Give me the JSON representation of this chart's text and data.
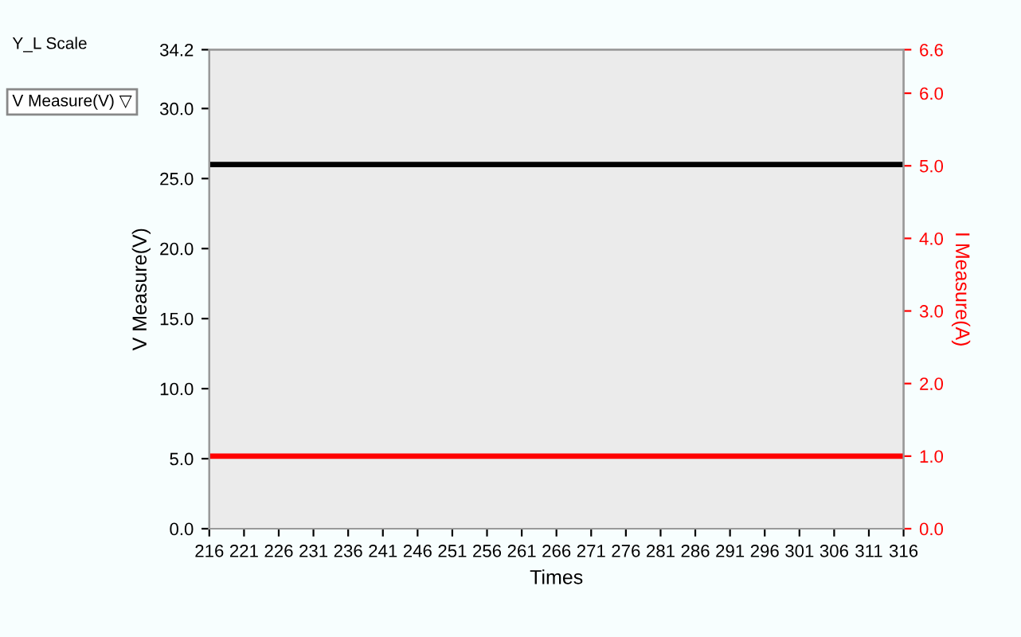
{
  "chart_data": {
    "type": "line",
    "xlabel": "Times",
    "ylabel": "V Measure(V)",
    "y2label": "I Measure(A)",
    "x": [
      216,
      316
    ],
    "series": [
      {
        "color": "#000000",
        "values": [
          26.0,
          26.0
        ]
      },
      {
        "color": "#ff0000",
        "values": [
          1.0,
          1.0
        ],
        "axis": "y2"
      }
    ],
    "xlim": [
      216,
      316
    ],
    "xticks": [
      216,
      221,
      226,
      231,
      236,
      241,
      246,
      251,
      256,
      261,
      266,
      271,
      276,
      281,
      286,
      291,
      296,
      301,
      306,
      311,
      316
    ],
    "ylim": [
      0,
      34.2
    ],
    "yticks": [
      {
        "value": 0,
        "label": "0.0"
      },
      {
        "value": 5,
        "label": "5.0"
      },
      {
        "value": 10,
        "label": "10.0"
      },
      {
        "value": 15,
        "label": "15.0"
      },
      {
        "value": 20,
        "label": "20.0"
      },
      {
        "value": 25,
        "label": "25.0"
      },
      {
        "value": 30,
        "label": "30.0"
      },
      {
        "value": 34.2,
        "label": "34.2"
      }
    ],
    "y2lim": [
      0,
      6.6
    ],
    "y2ticks": [
      {
        "value": 0,
        "label": "0.0"
      },
      {
        "value": 1,
        "label": "1.0"
      },
      {
        "value": 2,
        "label": "2.0"
      },
      {
        "value": 3,
        "label": "3.0"
      },
      {
        "value": 4,
        "label": "4.0"
      },
      {
        "value": 5,
        "label": "5.0"
      },
      {
        "value": 6,
        "label": "6.0"
      },
      {
        "value": 6.6,
        "label": "6.6"
      }
    ],
    "grid": false,
    "legend": false,
    "marker": "none",
    "line_style": "solid",
    "annotations": [
      "Y_L Scale",
      "V Measure(V) ▽"
    ]
  }
}
